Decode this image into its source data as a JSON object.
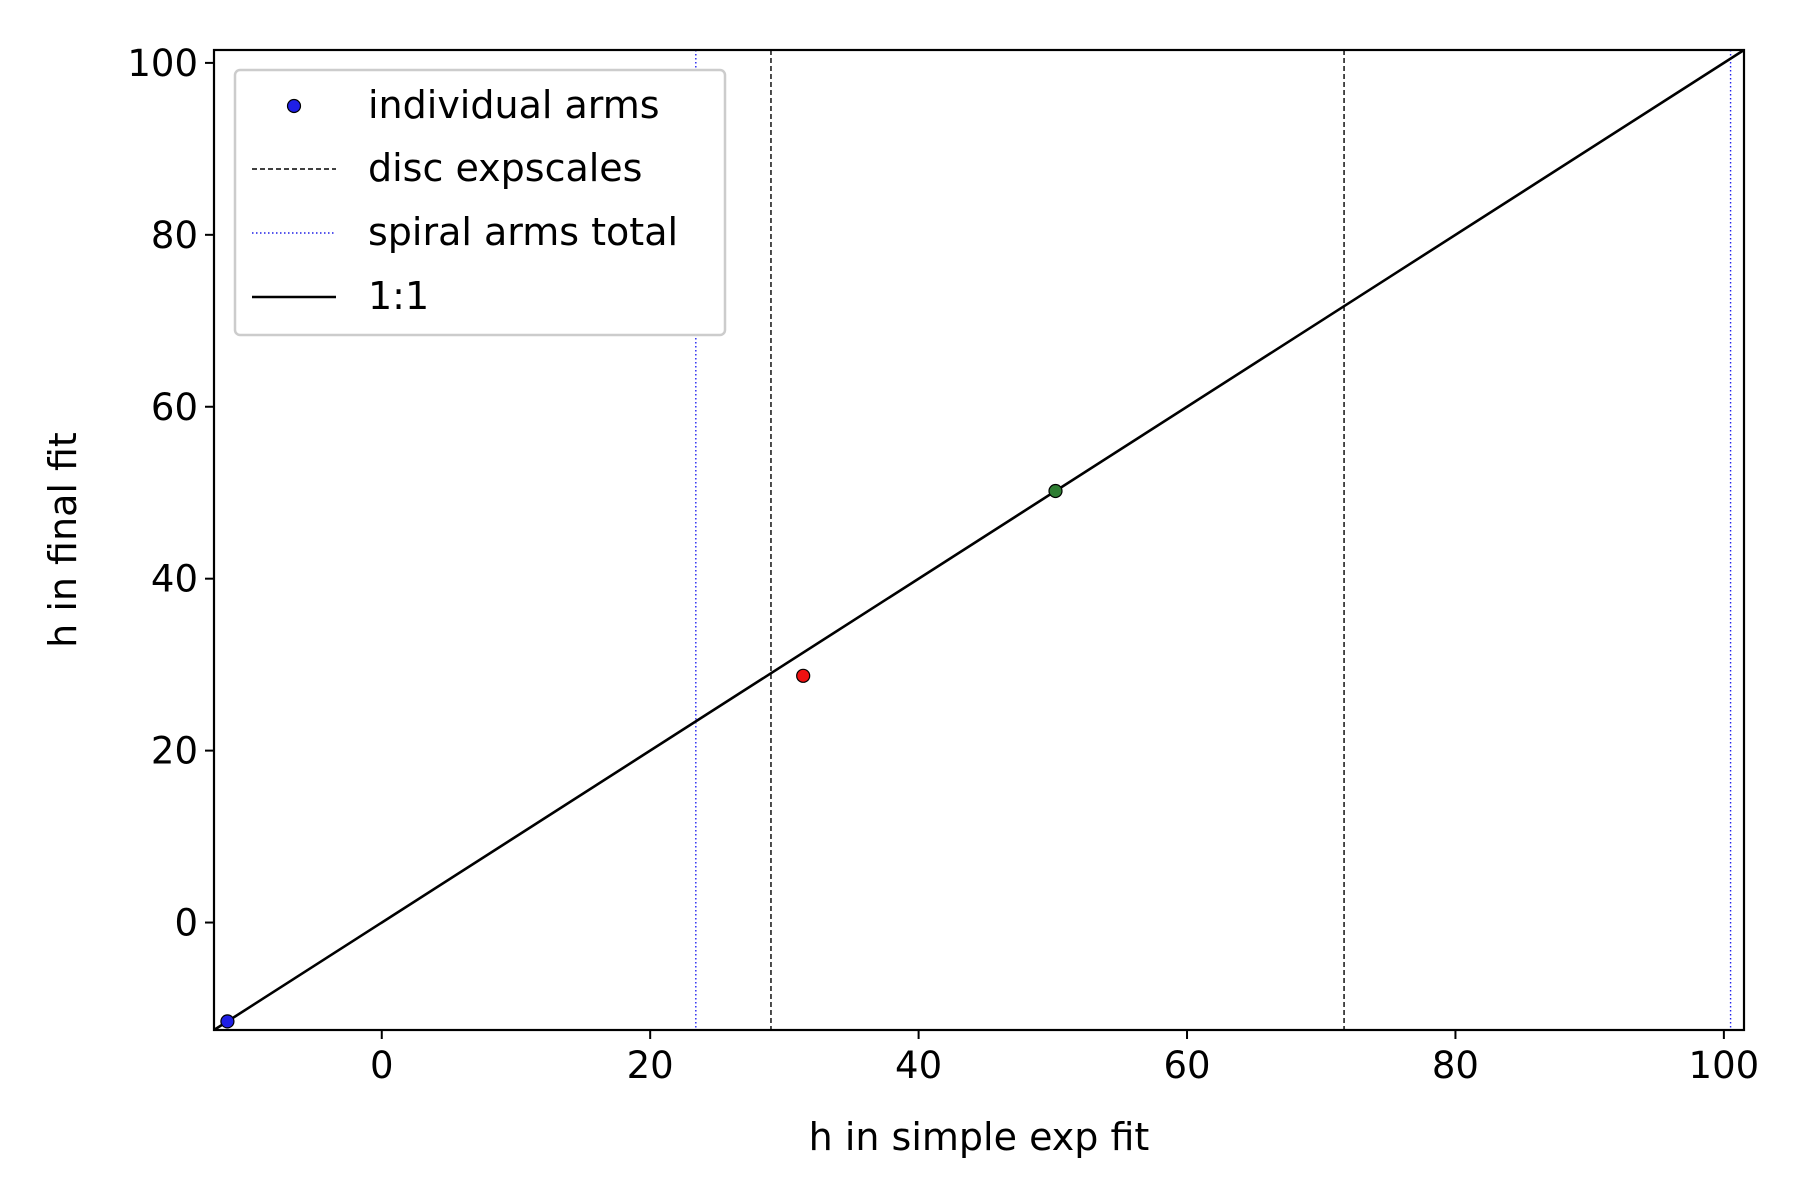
{
  "chart_data": {
    "type": "scatter",
    "title": "",
    "xlabel": "h in simple exp fit",
    "ylabel": "h in final fit",
    "xlim": [
      -12.5,
      101.5
    ],
    "ylim": [
      -12.5,
      101.5
    ],
    "xticks": [
      0,
      20,
      40,
      60,
      80,
      100
    ],
    "yticks": [
      0,
      20,
      40,
      60,
      80,
      100
    ],
    "xtick_labels": [
      "0",
      "20",
      "40",
      "60",
      "80",
      "100"
    ],
    "ytick_labels": [
      "0",
      "20",
      "40",
      "60",
      "80",
      "100"
    ],
    "grid": false,
    "legend_position": "top-left",
    "points": [
      {
        "x": -11.5,
        "y": -11.5,
        "color": "#1f1fe6"
      },
      {
        "x": 31.4,
        "y": 28.7,
        "color": "#ee1111"
      },
      {
        "x": 50.2,
        "y": 50.2,
        "color": "#2e7d32"
      }
    ],
    "disc_expscales": [
      29.0,
      71.7
    ],
    "spiral_arms_total": [
      23.4,
      100.5
    ],
    "one_to_one": {
      "from": -12.5,
      "to": 101.5
    },
    "legend": [
      {
        "label": "individual arms",
        "kind": "marker",
        "color": "#1f1fe6"
      },
      {
        "label": "disc expscales",
        "kind": "dashed",
        "color": "#000000"
      },
      {
        "label": "spiral arms total",
        "kind": "dotted",
        "color": "#1f1fe6"
      },
      {
        "label": "1:1",
        "kind": "solid",
        "color": "#000000"
      }
    ]
  }
}
